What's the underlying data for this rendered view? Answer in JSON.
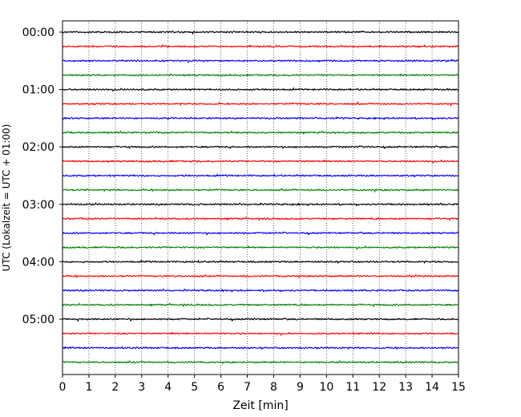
{
  "chart_data": {
    "type": "line",
    "title": "",
    "xlabel": "Zeit  [min]",
    "ylabel": "UTC (Lokalzeit = UTC + 01:00)",
    "xlim": [
      0,
      15
    ],
    "x_ticks": [
      0,
      1,
      2,
      3,
      4,
      5,
      6,
      7,
      8,
      9,
      10,
      11,
      12,
      13,
      14,
      15
    ],
    "y_tick_labels": [
      "00:00",
      "01:00",
      "02:00",
      "03:00",
      "04:00",
      "05:00"
    ],
    "trace_start_times": [
      "00:00",
      "00:15",
      "00:30",
      "00:45",
      "01:00",
      "01:15",
      "01:30",
      "01:45",
      "02:00",
      "02:15",
      "02:30",
      "02:45",
      "03:00",
      "03:15",
      "03:30",
      "03:45",
      "04:00",
      "04:15",
      "04:30",
      "04:45",
      "05:00",
      "05:15",
      "05:30",
      "05:45"
    ],
    "trace_duration_min": 15,
    "color_cycle": [
      "#000000",
      "#ff0000",
      "#0000ff",
      "#008000"
    ],
    "vertical_grid": "dotted, every 1 min",
    "legend": "none"
  }
}
